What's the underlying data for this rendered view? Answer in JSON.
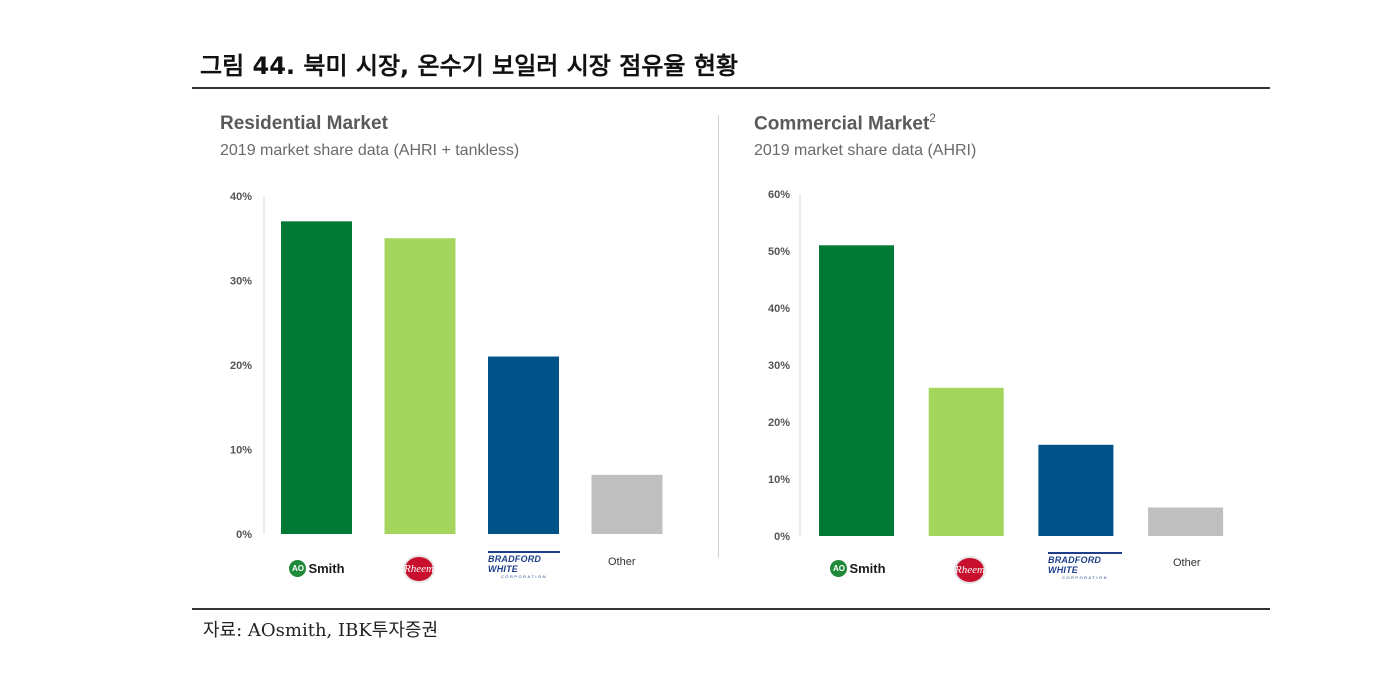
{
  "figure": {
    "title": "그림 44. 북미 시장, 온수기 보일러 시장 점유율 현황",
    "source": "자료: AOsmith, IBK투자증권"
  },
  "colors": {
    "ao_smith": "#007934",
    "rheem": "#a4d65e",
    "bradford_white": "#005288",
    "other": "#bfbfbf"
  },
  "logos": {
    "ao_smith": {
      "circle": "AO",
      "text": "Smith"
    },
    "rheem": {
      "text": "Rheem"
    },
    "bradford_white": {
      "text": "BRADFORD WHITE",
      "sub": "CORPORATION"
    }
  },
  "chart_data": [
    {
      "type": "bar",
      "title": "Residential Market",
      "subtitle": "2019 market share data (AHRI + tankless)",
      "categories": [
        "AO Smith",
        "Rheem",
        "Bradford White",
        "Other"
      ],
      "values": [
        37,
        35,
        21,
        7
      ],
      "ylim": [
        0,
        40
      ],
      "yticks": [
        "0%",
        "10%",
        "20%",
        "30%",
        "40%"
      ],
      "other_label": "Other"
    },
    {
      "type": "bar",
      "title": "Commercial Market",
      "title_sup": "2",
      "subtitle": "2019 market share data (AHRI)",
      "categories": [
        "AO Smith",
        "Rheem",
        "Bradford White",
        "Other"
      ],
      "values": [
        51,
        26,
        16,
        5
      ],
      "ylim": [
        0,
        60
      ],
      "yticks": [
        "0%",
        "10%",
        "20%",
        "30%",
        "40%",
        "50%",
        "60%"
      ],
      "other_label": "Other"
    }
  ]
}
